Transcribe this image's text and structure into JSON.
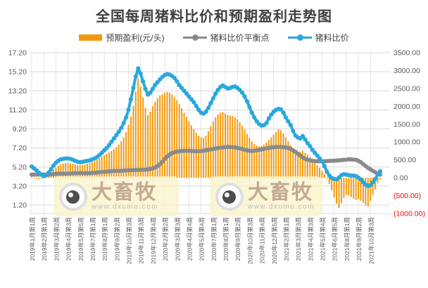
{
  "title": "全国每周猪料比价和预期盈利走势图",
  "legend": [
    {
      "label": "预期盈利(元/头)",
      "color": "#F29A0D",
      "type": "bar"
    },
    {
      "label": "猪料比价平衡点",
      "color": "#8A8A8A",
      "type": "line"
    },
    {
      "label": "猪料比价",
      "color": "#2AA7DE",
      "type": "line"
    }
  ],
  "watermark": {
    "brand": "大畜牧",
    "url": "www.dxumu.com",
    "icon": "eye-icon"
  },
  "colors": {
    "grid": "#D9D9D9",
    "axis_text": "#595959",
    "negative_tick": "#FF0000",
    "bar": "#F29A0D",
    "balance_line": "#8A8A8A",
    "ratio_line": "#2AA7DE"
  },
  "chart_data": {
    "type": "combo-bar-line",
    "title": "全国每周猪料比价和预期盈利走势图",
    "grid": true,
    "legend_position": "top",
    "x_ticks_every": 5,
    "x_tick_labels": [
      "2019年1月第1周",
      "2019年2月第1周",
      "2019年3月第2周",
      "2019年4月第3周",
      "2019年5月第5周",
      "2019年7月第1周",
      "2019年8月第1周",
      "2019年9月第2周",
      "2019年10月第3周",
      "2019年11月第3周",
      "2019年12月第4周",
      "2020年2月第2周",
      "2020年3月第3周",
      "2020年4月第4周",
      "2020年5月第4周",
      "2020年7月第1周",
      "2020年8月第1周",
      "2020年9月第2周",
      "2020年10月第3周",
      "2020年11月第4周",
      "2020年12月第5周",
      "2021年2月第1周",
      "2021年3月第3周",
      "2021年4月第3周",
      "2021年5月第4周",
      "2021年6月第5周",
      "2021年8月第1周",
      "2021年9月第2周",
      "2021年10月第3周"
    ],
    "left_axis": {
      "min": 1.2,
      "max": 17.2,
      "tick_step": 2.0,
      "ticks": [
        "17.20",
        "15.20",
        "13.20",
        "11.20",
        "9.20",
        "7.20",
        "5.20",
        "3.20",
        "1.20"
      ]
    },
    "right_axis": {
      "min": -1000,
      "max": 3500,
      "tick_step": 500,
      "ticks": [
        "3500.00",
        "3000.00",
        "2500.00",
        "2000.00",
        "1500.00",
        "1000.00",
        "500.00",
        "0.00",
        "(500.00)",
        "(1000.00)"
      ]
    },
    "series": [
      {
        "name": "预期盈利(元/头)",
        "type": "bar",
        "axis": "right",
        "color": "#F29A0D",
        "values": [
          20,
          -10,
          -30,
          -40,
          -30,
          0,
          40,
          90,
          150,
          220,
          290,
          340,
          380,
          400,
          410,
          415,
          405,
          390,
          370,
          355,
          350,
          360,
          375,
          390,
          410,
          440,
          470,
          510,
          550,
          590,
          630,
          670,
          710,
          750,
          800,
          860,
          930,
          1020,
          1130,
          1280,
          1480,
          1720,
          2020,
          2400,
          2780,
          2550,
          2250,
          1950,
          1750,
          1850,
          2000,
          2130,
          2230,
          2300,
          2340,
          2380,
          2400,
          2380,
          2330,
          2260,
          2170,
          2060,
          1940,
          1820,
          1700,
          1580,
          1470,
          1360,
          1260,
          1180,
          1130,
          1120,
          1180,
          1300,
          1450,
          1580,
          1690,
          1770,
          1820,
          1840,
          1800,
          1760,
          1740,
          1730,
          1700,
          1640,
          1560,
          1460,
          1350,
          1230,
          1120,
          1020,
          950,
          900,
          880,
          890,
          930,
          990,
          1060,
          1130,
          1200,
          1280,
          1360,
          1330,
          1240,
          1130,
          1020,
          910,
          820,
          760,
          730,
          720,
          760,
          700,
          640,
          580,
          500,
          420,
          350,
          280,
          200,
          100,
          -30,
          -180,
          -350,
          -550,
          -720,
          -850,
          -700,
          -560,
          -470,
          -500,
          -540,
          -580,
          -620,
          -600,
          -640,
          -700,
          -760,
          -800,
          -650,
          -480,
          -320,
          -150,
          -40
        ]
      },
      {
        "name": "猪料比价平衡点",
        "type": "line",
        "axis": "left",
        "color": "#8A8A8A",
        "values": [
          4.4,
          4.4,
          4.4,
          4.4,
          4.4,
          4.4,
          4.4,
          4.42,
          4.44,
          4.46,
          4.48,
          4.5,
          4.5,
          4.5,
          4.5,
          4.5,
          4.52,
          4.54,
          4.55,
          4.56,
          4.56,
          4.55,
          4.55,
          4.55,
          4.56,
          4.58,
          4.6,
          4.62,
          4.65,
          4.68,
          4.7,
          4.72,
          4.74,
          4.76,
          4.78,
          4.8,
          4.8,
          4.8,
          4.82,
          4.84,
          4.85,
          4.86,
          4.87,
          4.88,
          4.9,
          4.9,
          4.9,
          4.92,
          4.95,
          5.0,
          5.05,
          5.15,
          5.3,
          5.5,
          5.75,
          6.05,
          6.3,
          6.5,
          6.65,
          6.75,
          6.82,
          6.86,
          6.88,
          6.9,
          6.9,
          6.9,
          6.88,
          6.86,
          6.85,
          6.85,
          6.87,
          6.9,
          6.95,
          7.0,
          7.05,
          7.1,
          7.15,
          7.2,
          7.22,
          7.25,
          7.28,
          7.3,
          7.3,
          7.28,
          7.25,
          7.2,
          7.15,
          7.1,
          7.0,
          6.95,
          6.9,
          6.88,
          6.9,
          6.95,
          7.0,
          7.05,
          7.1,
          7.15,
          7.2,
          7.25,
          7.28,
          7.3,
          7.3,
          7.3,
          7.28,
          7.25,
          7.2,
          7.1,
          6.95,
          6.8,
          6.6,
          6.4,
          6.2,
          6.05,
          5.95,
          5.9,
          5.85,
          5.82,
          5.8,
          5.8,
          5.8,
          5.8,
          5.82,
          5.84,
          5.85,
          5.86,
          5.88,
          5.9,
          5.92,
          5.95,
          5.97,
          6.0,
          6.0,
          5.98,
          5.95,
          5.85,
          5.7,
          5.5,
          5.3,
          5.1,
          4.95,
          4.8,
          4.65,
          4.5,
          4.4
        ]
      },
      {
        "name": "猪料比价",
        "type": "line",
        "axis": "left",
        "color": "#2AA7DE",
        "values": [
          5.25,
          5.05,
          4.85,
          4.6,
          4.4,
          4.25,
          4.35,
          4.6,
          4.95,
          5.35,
          5.65,
          5.85,
          6.0,
          6.05,
          6.1,
          6.1,
          6.05,
          5.95,
          5.85,
          5.75,
          5.7,
          5.75,
          5.8,
          5.85,
          5.9,
          6.0,
          6.1,
          6.25,
          6.45,
          6.7,
          6.95,
          7.2,
          7.5,
          7.85,
          8.2,
          8.55,
          8.9,
          9.3,
          9.8,
          10.4,
          11.2,
          12.3,
          13.5,
          14.7,
          15.55,
          15.0,
          14.2,
          13.4,
          12.8,
          13.0,
          13.4,
          13.8,
          14.1,
          14.4,
          14.65,
          14.85,
          14.95,
          14.9,
          14.75,
          14.55,
          14.2,
          13.8,
          13.5,
          13.2,
          12.9,
          12.6,
          12.3,
          12.0,
          11.6,
          11.2,
          10.9,
          10.8,
          11.0,
          11.4,
          11.9,
          12.4,
          12.9,
          13.3,
          13.6,
          13.75,
          13.6,
          13.45,
          13.5,
          13.6,
          13.65,
          13.5,
          13.3,
          13.0,
          12.6,
          12.1,
          11.5,
          10.9,
          10.4,
          10.0,
          9.7,
          9.55,
          9.6,
          9.8,
          10.3,
          10.7,
          11.0,
          11.2,
          11.3,
          11.25,
          10.9,
          10.4,
          10.0,
          9.6,
          9.0,
          8.5,
          8.3,
          8.2,
          8.45,
          8.1,
          7.7,
          7.4,
          7.0,
          6.7,
          6.4,
          6.1,
          5.8,
          5.3,
          4.7,
          4.3,
          4.05,
          3.95,
          3.9,
          4.1,
          4.35,
          4.45,
          4.4,
          4.35,
          4.3,
          4.3,
          4.25,
          4.1,
          3.9,
          3.6,
          3.35,
          3.2,
          3.3,
          3.6,
          3.95,
          4.4,
          4.75
        ]
      }
    ]
  }
}
